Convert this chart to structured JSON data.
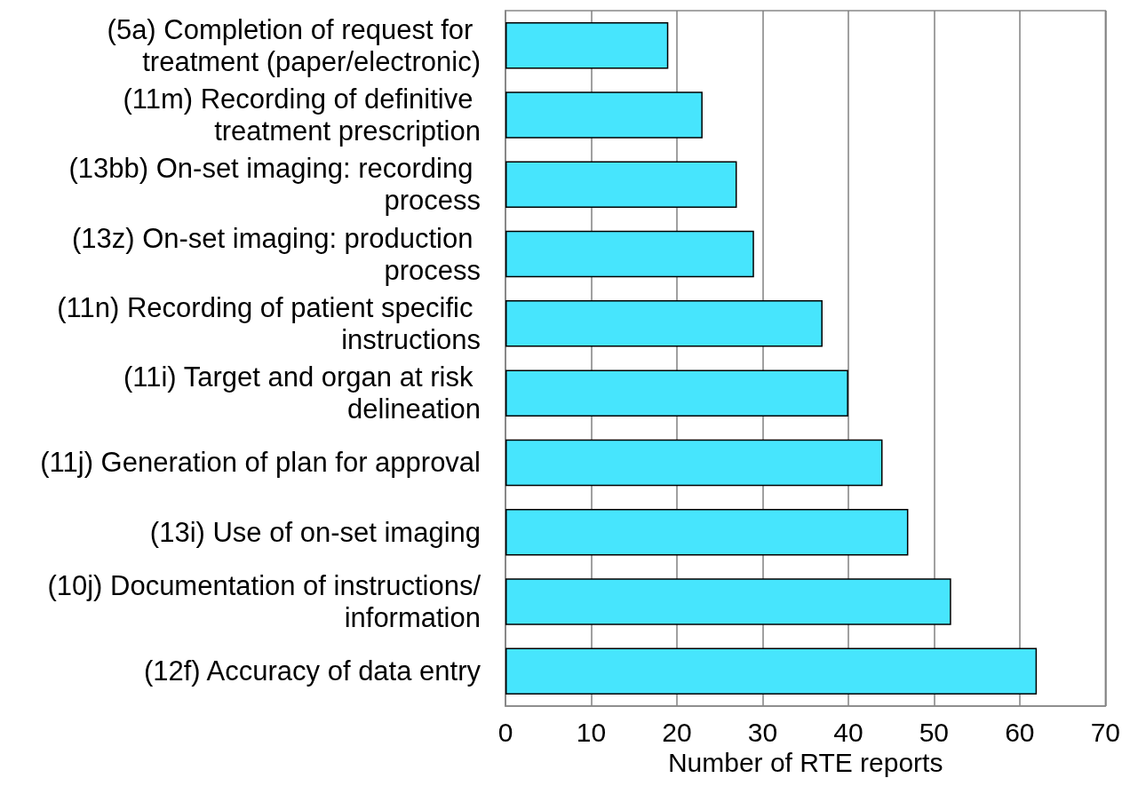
{
  "chart_data": {
    "type": "bar",
    "orientation": "horizontal",
    "xlabel": "Number of RTE reports",
    "categories": [
      "(5a) Completion of request for treatment (paper/electronic)",
      "(11m) Recording of definitive treatment prescription",
      "(13bb) On-set imaging: recording process",
      "(13z) On-set imaging: production process",
      "(11n) Recording of patient specific instructions",
      "(11i) Target and organ at risk delineation",
      "(11j) Generation of plan for approval",
      "(13i) Use of on-set imaging",
      "(10j) Documentation of instructions/information",
      "(12f) Accuracy of data entry"
    ],
    "values": [
      19,
      23,
      27,
      29,
      37,
      40,
      44,
      47,
      52,
      62
    ],
    "color": "#47e5fd",
    "xlim": [
      0,
      70
    ],
    "xticks": [
      0,
      10,
      20,
      30,
      40,
      50,
      60,
      70
    ],
    "grid": "x"
  }
}
